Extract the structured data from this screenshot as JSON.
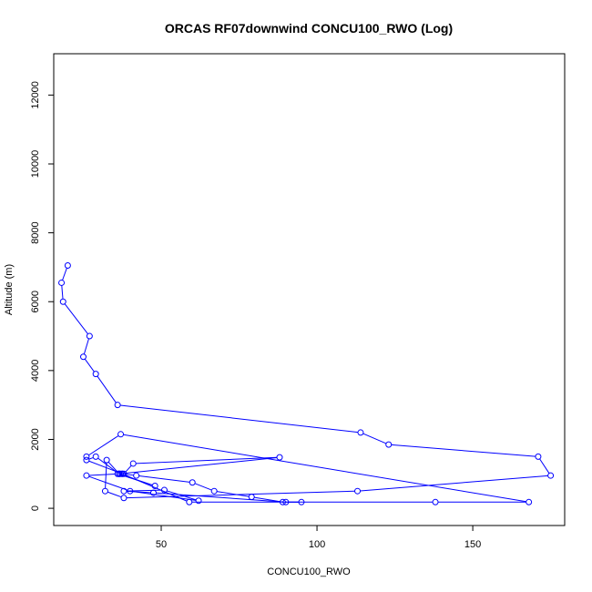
{
  "chart_data": {
    "type": "line",
    "title": "ORCAS RF07downwind CONCU100_RWO (Log)",
    "xlabel": "CONCU100_RWO",
    "ylabel": "Altitude (m)",
    "xlim": [
      15.5,
      179.5
    ],
    "ylim": [
      -500,
      13200
    ],
    "xticks": [
      50,
      100,
      150
    ],
    "yticks": [
      0,
      2000,
      4000,
      6000,
      8000,
      10000,
      12000
    ],
    "grid": false,
    "color": "#0000ff",
    "series": [
      {
        "x": [
          20,
          18,
          18.5,
          27,
          25,
          29,
          36,
          114,
          123,
          171,
          175,
          113,
          38,
          32,
          32.5,
          36.5,
          88,
          41,
          38,
          37,
          36.5,
          37.5,
          42,
          60,
          67,
          79,
          89,
          95,
          90,
          47.5,
          38,
          51,
          62,
          40,
          26,
          36,
          48,
          36.5,
          29,
          26,
          37.5,
          59,
          138,
          168,
          37,
          26
        ],
        "y": [
          7050,
          6550,
          6000,
          5000,
          4400,
          3900,
          3000,
          2200,
          1850,
          1500,
          950,
          500,
          300,
          500,
          1400,
          1000,
          1480,
          1300,
          1000,
          1000,
          1000,
          1000,
          950,
          750,
          500,
          330,
          180,
          180,
          180,
          450,
          500,
          530,
          220,
          500,
          950,
          1000,
          650,
          1000,
          1500,
          1400,
          1000,
          180,
          180,
          180,
          2150,
          1500
        ]
      }
    ]
  }
}
